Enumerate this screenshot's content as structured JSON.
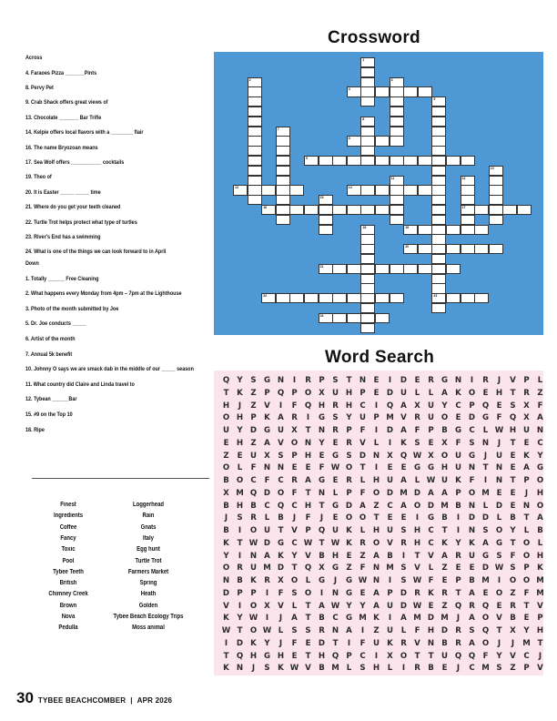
{
  "crossword": {
    "title": "Crossword",
    "background_color": "#4f98d6",
    "across_heading": "Across",
    "across": [
      "4. Faraoes Pizza _______Pints",
      "8. Pervy Pet",
      "9. Crab Shack offers great views of",
      "13. Chocolate _______ Bar Trifle",
      "14. Kelpie offers local flavors with a ________ flair",
      "16. The name Bryozoan means",
      "17. Sea Wolf offers ___________ cocktails",
      "19. Theo of",
      "20. It is Easter _____ _____ time",
      "21. Where do you get your teeth cleaned",
      "22. Turtle Trot helps protect what type of turtles",
      "23. River's End has a swimming",
      "24. What is one of the things we can look forward to in April"
    ],
    "down_heading": "Down",
    "down": [
      "1. Totally ______ Free Cleaning",
      "2. What happens every Monday from 4pm – 7pm at the Lighthouse",
      "3. Photo of the month submitted by Joe",
      "5. Dr. Joe conducts _____",
      "6. Artist of the month",
      "7. Annual 5k benefit",
      "10. Johnny O says we are smack dab in the middle of our _____ season",
      "11. What country did Claire and Linda travel to",
      "12. Tybean ______Bar",
      "15. #9 on the Top 10",
      "18. Ripe"
    ],
    "numbers": [
      "1",
      "2",
      "3",
      "4",
      "5",
      "6",
      "7",
      "8",
      "9",
      "10",
      "11",
      "12",
      "13",
      "14",
      "15",
      "16",
      "17",
      "18",
      "19",
      "20",
      "21",
      "22",
      "23",
      "24"
    ]
  },
  "word_search": {
    "title": "Word Search",
    "background_color": "#fce4ec",
    "grid": [
      "QYSGNIRPSTNEIDERGNIRJVPL",
      "TKZPQPOXUHPEDULLAKOEHTRZ",
      "HJZVIFQHRHCIQAXUYCPQESXF",
      "OHPKARIGSYUPMVRUOEDGFQXA",
      "UYDGUXTNRPFIDAFPBGCLWHUN",
      "EHZAVONYERVLIKSEXFSNJTEC",
      "ZEUXSPHEGSDNXQWXOUGJUEKY",
      "OLFNNEEFWOTIEEGGHUNTNEAG",
      "BOCFCRAGERLHUALWUKFINTPO",
      "XMQDOFTNLPFODMDAAPOMEEJH",
      "BHBCQCHTGDAZCAODMBNLDENO",
      "JSRLBJFJEOOTEEIGBIDDLBTA",
      "BIOUTVPQUKLHUSHCTINSOYLB",
      "KTWDGCWTWKROVRHCKYKAGTOL",
      "YINAKYVBHEZABITVARUGSFOH",
      "ORUMDTQXGZFNMSVLZEEDWSPK",
      "NBKRXOLGJGWNISWFEPBMIOOM",
      "DPPIFSOINGEAPDRKRTAEOZFM",
      "VIOXVLTAWYYAUDWEZQRQERTV",
      "KYWIJATBCGMKIAMDMJAOVBEP",
      "WTOWLSSRNAIZULFHDRSQTXYH",
      "IDKYJFEDTIFUKRVNBRAOJJMT",
      "TQHGHETHQPCIXOTTUQQFYVCJ",
      "KNJSKWVBMLSHLIRBEJCMSZPV"
    ],
    "words_col1": [
      "Finest",
      "Ingredients",
      "Coffee",
      "Fancy",
      "Toxic",
      "Pool",
      "Tybee Teeth",
      "British",
      "Chimney Creek",
      "Brown",
      "Nova",
      "Pedulla"
    ],
    "words_col2": [
      "Loggerhead",
      "Rain",
      "Gnats",
      "Italy",
      "Egg hunt",
      "Turtle Trot",
      "Farmers Market",
      "Spring",
      "Heath",
      "Golden",
      "Tybee Beach Ecology Trips",
      "Moss animal"
    ]
  },
  "footer": {
    "page_number": "30",
    "publication": "TYBEE BEACHCOMBER",
    "separator": "|",
    "issue": "APR 2026"
  }
}
